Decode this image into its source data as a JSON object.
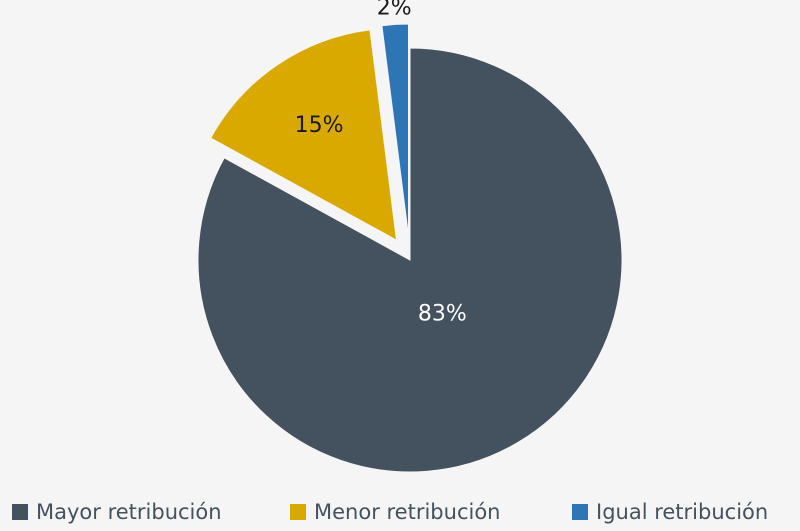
{
  "chart_data": {
    "type": "pie",
    "categories": [
      "Mayor retribución",
      "Menor retribución",
      "Igual retribución"
    ],
    "values": [
      83,
      15,
      2
    ],
    "value_labels": [
      "83%",
      "15%",
      "2%"
    ],
    "colors": [
      "#44515e",
      "#d9a900",
      "#2e75b6"
    ],
    "exploded": [
      false,
      true,
      true
    ],
    "legend": "bottom"
  }
}
